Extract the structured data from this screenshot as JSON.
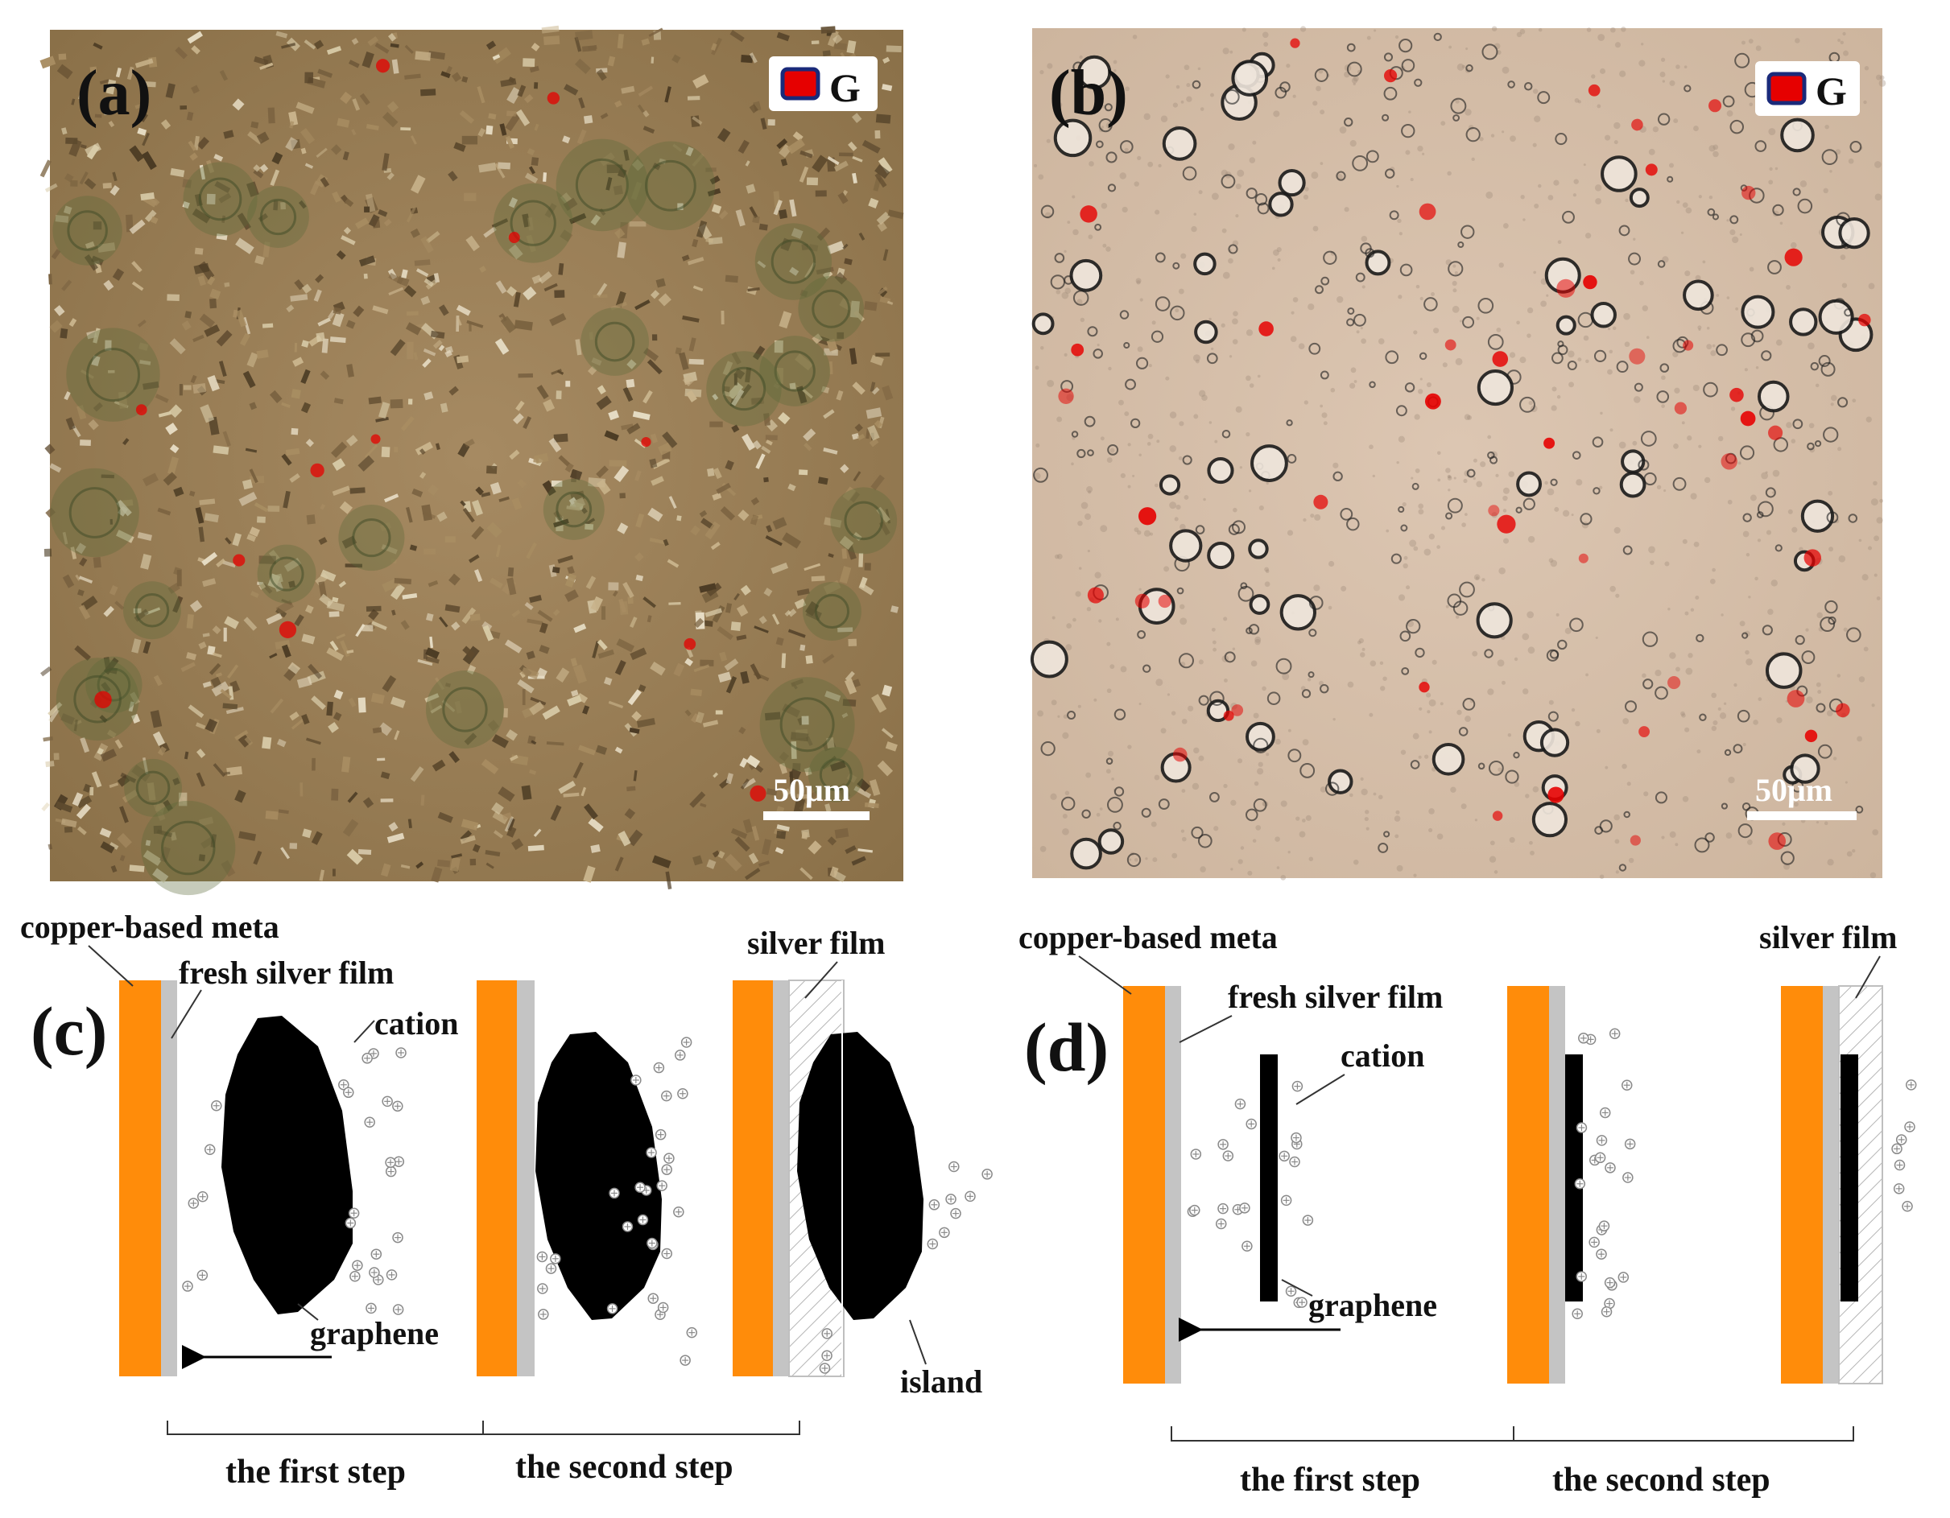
{
  "panels": {
    "a": {
      "tag": "(a)",
      "legend_label": "G",
      "scale_bar": "50μm"
    },
    "b": {
      "tag": "(b)",
      "legend_label": "G",
      "scale_bar": "50μm"
    },
    "c": {
      "tag": "(c)",
      "labels": {
        "substrate": "copper-based meta",
        "fresh_film": "fresh silver film",
        "cation": "cation",
        "silver_film": "silver film",
        "graphene": "graphene",
        "island": "island"
      },
      "steps": [
        "the first step",
        "the second step"
      ]
    },
    "d": {
      "tag": "(d)",
      "labels": {
        "substrate": "copper-based meta",
        "fresh_film": "fresh silver film",
        "cation": "cation",
        "silver_film": "silver film",
        "graphene": "graphene"
      },
      "steps": [
        "the first step",
        "the second step"
      ]
    }
  },
  "colors": {
    "copper": "#ff8c0a",
    "silver": "#c4c4c4",
    "graphene": "#000000",
    "graphene_marker": "#e60000",
    "micrograph_a": "#9c8059",
    "micrograph_b": "#d8c2ad"
  }
}
